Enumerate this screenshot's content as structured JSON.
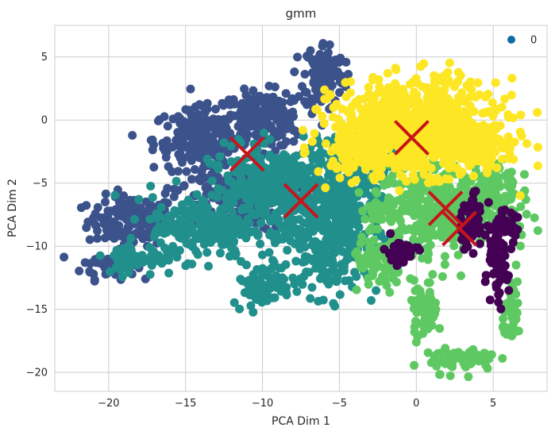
{
  "chart_data": {
    "type": "scatter",
    "title": "gmm",
    "xlabel": "PCA Dim 1",
    "ylabel": "PCA Dim 2",
    "xlim": [
      -23.5,
      8.5
    ],
    "ylim": [
      -21.5,
      7.5
    ],
    "xticks": [
      -20,
      -15,
      -10,
      -5,
      0,
      5
    ],
    "yticks": [
      5,
      0,
      -5,
      -10,
      -15,
      -20
    ],
    "grid": true,
    "legend": {
      "placement": "top-right",
      "entries": [
        {
          "label": "0",
          "color": "#0f6ba6"
        }
      ]
    },
    "series": [
      {
        "cluster": 0,
        "color": "#3b528b",
        "regions": [
          {
            "cx": -18.5,
            "cy": -8.0,
            "rx": 2.6,
            "ry": 1.8,
            "n": 150
          },
          {
            "cx": -20.0,
            "cy": -11.5,
            "rx": 1.6,
            "ry": 1.0,
            "n": 50
          },
          {
            "cx": -14.0,
            "cy": -1.5,
            "rx": 2.8,
            "ry": 2.2,
            "n": 200
          },
          {
            "cx": -10.0,
            "cy": 0.0,
            "rx": 2.5,
            "ry": 2.0,
            "n": 200
          },
          {
            "cx": -6.0,
            "cy": 3.5,
            "rx": 1.2,
            "ry": 2.5,
            "n": 120
          },
          {
            "cx": -12.0,
            "cy": -6.0,
            "rx": 3.5,
            "ry": 2.5,
            "n": 150
          }
        ]
      },
      {
        "cluster": 1,
        "color": "#21908d",
        "regions": [
          {
            "cx": -9.0,
            "cy": -5.5,
            "rx": 4.0,
            "ry": 3.0,
            "n": 400
          },
          {
            "cx": -5.5,
            "cy": -9.0,
            "rx": 2.8,
            "ry": 4.5,
            "n": 350
          },
          {
            "cx": -14.0,
            "cy": -8.5,
            "rx": 3.0,
            "ry": 2.2,
            "n": 200
          },
          {
            "cx": -18.0,
            "cy": -11.0,
            "rx": 2.0,
            "ry": 1.2,
            "n": 60
          },
          {
            "cx": -10.0,
            "cy": -13.0,
            "rx": 1.8,
            "ry": 1.5,
            "n": 80
          },
          {
            "cx": -4.0,
            "cy": -3.0,
            "rx": 2.5,
            "ry": 2.0,
            "n": 150
          }
        ]
      },
      {
        "cluster": 2,
        "color": "#5ec962",
        "regions": [
          {
            "cx": 1.5,
            "cy": -7.0,
            "rx": 4.0,
            "ry": 3.2,
            "n": 450
          },
          {
            "cx": 5.0,
            "cy": -5.5,
            "rx": 1.5,
            "ry": 2.5,
            "n": 100
          },
          {
            "cx": 0.5,
            "cy": -15.0,
            "rx": 0.8,
            "ry": 2.0,
            "n": 60
          },
          {
            "cx": 3.0,
            "cy": -19.0,
            "rx": 2.0,
            "ry": 0.9,
            "n": 70
          },
          {
            "cx": 6.3,
            "cy": -15.5,
            "rx": 0.6,
            "ry": 1.8,
            "n": 40
          },
          {
            "cx": -2.5,
            "cy": -11.5,
            "rx": 1.5,
            "ry": 2.0,
            "n": 80
          }
        ]
      },
      {
        "cluster": 3,
        "color": "#fde725",
        "regions": [
          {
            "cx": 0.0,
            "cy": -0.5,
            "rx": 4.8,
            "ry": 3.3,
            "n": 800
          },
          {
            "cx": -3.5,
            "cy": -2.0,
            "rx": 2.0,
            "ry": 2.0,
            "n": 150
          },
          {
            "cx": 3.5,
            "cy": -2.0,
            "rx": 2.0,
            "ry": 1.5,
            "n": 150
          }
        ]
      },
      {
        "cluster": 4,
        "color": "#440154",
        "regions": [
          {
            "cx": -1.0,
            "cy": -10.5,
            "rx": 1.0,
            "ry": 0.9,
            "n": 40
          },
          {
            "cx": 3.5,
            "cy": -8.0,
            "rx": 0.9,
            "ry": 2.0,
            "n": 60
          },
          {
            "cx": 5.2,
            "cy": -12.0,
            "rx": 0.7,
            "ry": 2.3,
            "n": 60
          },
          {
            "cx": 5.7,
            "cy": -8.5,
            "rx": 0.8,
            "ry": 1.2,
            "n": 40
          }
        ]
      }
    ],
    "centroids": {
      "color": "#c8151b",
      "marker": "x",
      "points": [
        {
          "x": -11.0,
          "y": -2.7
        },
        {
          "x": -7.5,
          "y": -6.4
        },
        {
          "x": -0.3,
          "y": -1.4
        },
        {
          "x": 1.9,
          "y": -7.0
        },
        {
          "x": 2.8,
          "y": -8.6
        }
      ]
    }
  }
}
